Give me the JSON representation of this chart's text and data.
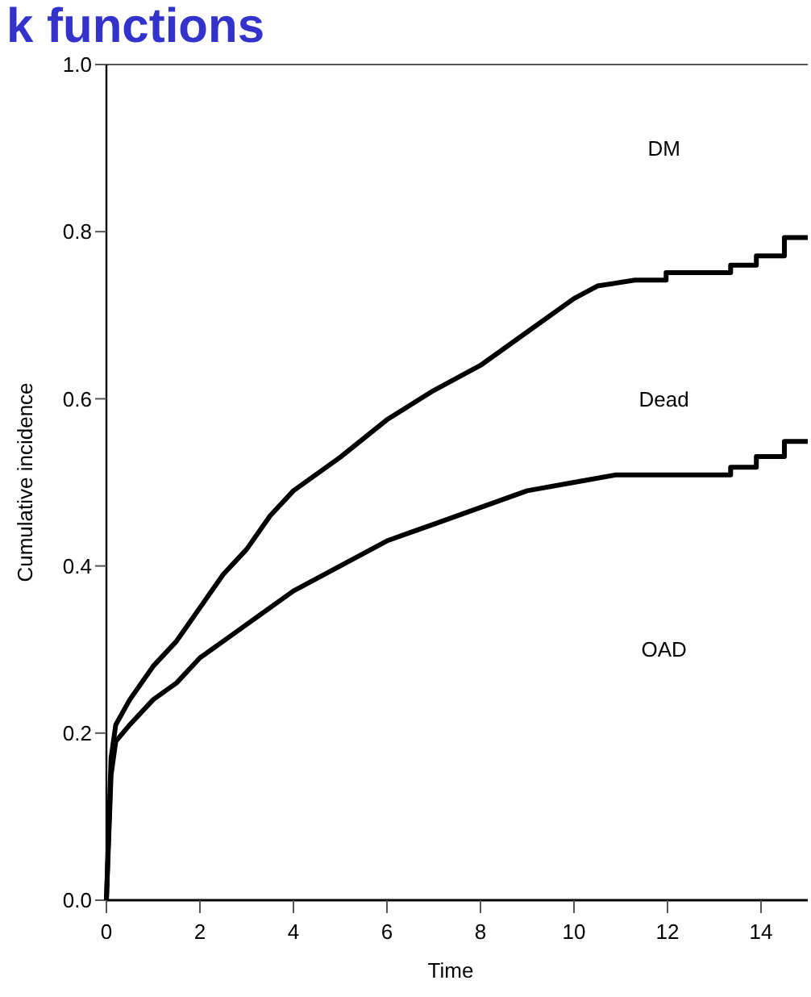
{
  "chart_data": {
    "type": "line",
    "title": "k functions",
    "xlabel": "Time",
    "ylabel": "Cumulative incidence",
    "xlim": [
      0,
      15
    ],
    "xticks": [
      0,
      2,
      4,
      6,
      8,
      10,
      12,
      14
    ],
    "ylim": [
      0,
      1
    ],
    "yticks": [
      {
        "value": 0,
        "label": "0.0"
      },
      {
        "value": 0.2,
        "label": "0.2"
      },
      {
        "value": 0.4,
        "label": "0.4"
      },
      {
        "value": 0.6,
        "label": "0.6"
      },
      {
        "value": 0.8,
        "label": "0.8"
      },
      {
        "value": 1,
        "label": "1.0"
      }
    ],
    "grid": false,
    "marker": "none",
    "line_style": "solid",
    "series": [
      {
        "color": "#000000",
        "x": [
          0,
          0.1,
          0.2,
          0.5,
          1,
          1.5,
          2,
          2.5,
          3,
          3.5,
          4,
          5,
          6,
          7,
          8,
          9,
          10,
          10.5,
          11.3,
          11.97,
          11.97,
          13.35,
          13.35,
          13.9,
          13.9,
          14.5,
          14.5,
          15
        ],
        "values": [
          0,
          0.17,
          0.21,
          0.24,
          0.28,
          0.31,
          0.35,
          0.39,
          0.42,
          0.46,
          0.49,
          0.53,
          0.575,
          0.61,
          0.64,
          0.68,
          0.72,
          0.735,
          0.742,
          0.742,
          0.751,
          0.751,
          0.76,
          0.76,
          0.771,
          0.771,
          0.793,
          0.793
        ]
      },
      {
        "color": "#000000",
        "x": [
          0,
          0.1,
          0.2,
          0.5,
          1,
          1.5,
          2,
          2.5,
          3,
          4,
          5,
          6,
          7,
          8,
          9,
          10,
          10.9,
          13.35,
          13.35,
          13.9,
          13.9,
          14.5,
          14.5,
          15
        ],
        "values": [
          0,
          0.15,
          0.19,
          0.21,
          0.24,
          0.26,
          0.29,
          0.31,
          0.33,
          0.37,
          0.4,
          0.43,
          0.45,
          0.47,
          0.49,
          0.5,
          0.509,
          0.509,
          0.518,
          0.518,
          0.531,
          0.531,
          0.549,
          0.549
        ]
      }
    ],
    "annotations": [
      "DM",
      "Dead",
      "OAD"
    ]
  }
}
